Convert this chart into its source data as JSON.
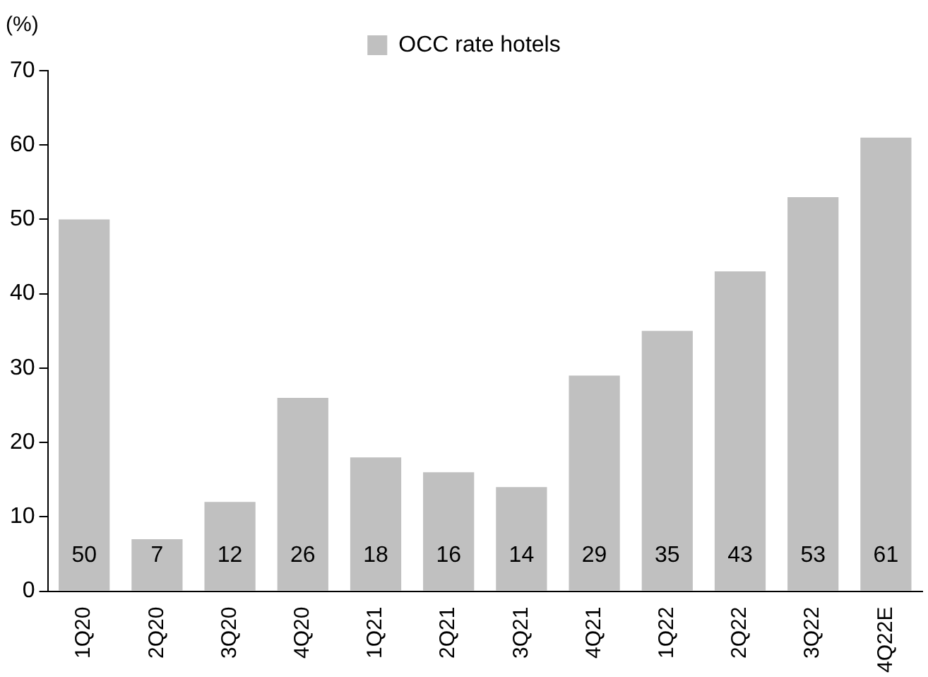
{
  "chart_data": {
    "type": "bar",
    "ylabel": "(%)",
    "categories": [
      "1Q20",
      "2Q20",
      "3Q20",
      "4Q20",
      "1Q21",
      "2Q21",
      "3Q21",
      "4Q21",
      "1Q22",
      "2Q22",
      "3Q22",
      "4Q22E"
    ],
    "series": [
      {
        "name": "OCC rate hotels",
        "color": "#c0c0c0",
        "values": [
          50,
          7,
          12,
          26,
          18,
          16,
          14,
          29,
          35,
          43,
          53,
          61
        ]
      }
    ],
    "ylim": [
      0,
      70
    ],
    "yticks": [
      0,
      10,
      20,
      30,
      40,
      50,
      60,
      70
    ],
    "grid": false,
    "legend": "top",
    "data_labels": true
  }
}
